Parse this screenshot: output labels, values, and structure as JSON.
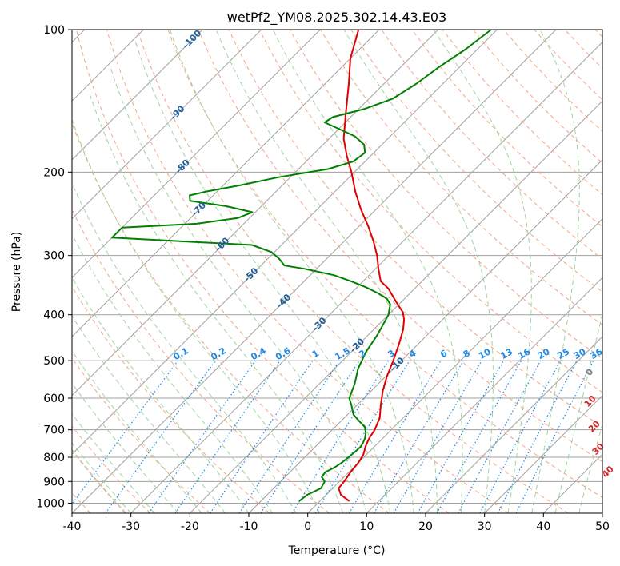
{
  "chart_data": {
    "type": "line",
    "subtype": "skew-T log-P diagram",
    "title": "wetPf2_YM08.2025.302.14.43.E03",
    "xlabel": "Temperature (°C)",
    "ylabel": "Pressure (hPa)",
    "xlim": [
      -40,
      50
    ],
    "ylim": [
      1050,
      100
    ],
    "y_scale": "log",
    "grid": true,
    "x_ticks": [
      "-40",
      "-30",
      "-20",
      "-10",
      "0",
      "10",
      "20",
      "30",
      "40",
      "50"
    ],
    "y_ticks": [
      "100",
      "200",
      "300",
      "400",
      "500",
      "600",
      "700",
      "800",
      "900",
      "1000"
    ],
    "series": [
      {
        "role": "temperature",
        "color": "#e00000",
        "points": [
          {
            "p": 990,
            "t": 5.0
          },
          {
            "p": 960,
            "t": 2.5
          },
          {
            "p": 930,
            "t": 1.0
          },
          {
            "p": 900,
            "t": 0.8
          },
          {
            "p": 860,
            "t": 0.3
          },
          {
            "p": 820,
            "t": 0.0
          },
          {
            "p": 790,
            "t": -0.5
          },
          {
            "p": 760,
            "t": -1.5
          },
          {
            "p": 730,
            "t": -2.3
          },
          {
            "p": 700,
            "t": -2.8
          },
          {
            "p": 660,
            "t": -4.0
          },
          {
            "p": 620,
            "t": -6.0
          },
          {
            "p": 580,
            "t": -8.0
          },
          {
            "p": 540,
            "t": -9.8
          },
          {
            "p": 500,
            "t": -11.4
          },
          {
            "p": 460,
            "t": -13.3
          },
          {
            "p": 430,
            "t": -15.0
          },
          {
            "p": 410,
            "t": -16.5
          },
          {
            "p": 395,
            "t": -18.0
          },
          {
            "p": 385,
            "t": -19.5
          },
          {
            "p": 375,
            "t": -21.0
          },
          {
            "p": 365,
            "t": -22.5
          },
          {
            "p": 352,
            "t": -24.5
          },
          {
            "p": 340,
            "t": -27.0
          },
          {
            "p": 320,
            "t": -29.5
          },
          {
            "p": 300,
            "t": -32.0
          },
          {
            "p": 280,
            "t": -35.0
          },
          {
            "p": 260,
            "t": -38.5
          },
          {
            "p": 240,
            "t": -42.5
          },
          {
            "p": 220,
            "t": -46.5
          },
          {
            "p": 200,
            "t": -50.5
          },
          {
            "p": 185,
            "t": -54.0
          },
          {
            "p": 170,
            "t": -57.5
          },
          {
            "p": 150,
            "t": -61.5
          },
          {
            "p": 130,
            "t": -66.0
          },
          {
            "p": 115,
            "t": -70.0
          },
          {
            "p": 100,
            "t": -73.5
          }
        ]
      },
      {
        "role": "dewpoint",
        "color": "#008000",
        "points": [
          {
            "p": 990,
            "t": -3.5
          },
          {
            "p": 960,
            "t": -3.2
          },
          {
            "p": 930,
            "t": -2.0
          },
          {
            "p": 900,
            "t": -2.5
          },
          {
            "p": 880,
            "t": -3.8
          },
          {
            "p": 860,
            "t": -4.0
          },
          {
            "p": 840,
            "t": -3.2
          },
          {
            "p": 820,
            "t": -2.8
          },
          {
            "p": 800,
            "t": -2.6
          },
          {
            "p": 780,
            "t": -2.4
          },
          {
            "p": 760,
            "t": -2.3
          },
          {
            "p": 745,
            "t": -2.6
          },
          {
            "p": 730,
            "t": -3.0
          },
          {
            "p": 710,
            "t": -3.8
          },
          {
            "p": 690,
            "t": -5.0
          },
          {
            "p": 670,
            "t": -7.0
          },
          {
            "p": 650,
            "t": -9.0
          },
          {
            "p": 620,
            "t": -11.0
          },
          {
            "p": 600,
            "t": -12.5
          },
          {
            "p": 560,
            "t": -14.0
          },
          {
            "p": 520,
            "t": -16.0
          },
          {
            "p": 480,
            "t": -17.5
          },
          {
            "p": 440,
            "t": -18.5
          },
          {
            "p": 400,
            "t": -20.0
          },
          {
            "p": 380,
            "t": -21.5
          },
          {
            "p": 370,
            "t": -23.0
          },
          {
            "p": 360,
            "t": -25.5
          },
          {
            "p": 350,
            "t": -28.5
          },
          {
            "p": 340,
            "t": -32.0
          },
          {
            "p": 330,
            "t": -36.0
          },
          {
            "p": 320,
            "t": -42.0
          },
          {
            "p": 315,
            "t": -46.0
          },
          {
            "p": 305,
            "t": -48.0
          },
          {
            "p": 295,
            "t": -50.5
          },
          {
            "p": 285,
            "t": -55.0
          },
          {
            "p": 275,
            "t": -80.0
          },
          {
            "p": 262,
            "t": -80.0
          },
          {
            "p": 257,
            "t": -68.0
          },
          {
            "p": 250,
            "t": -62.0
          },
          {
            "p": 243,
            "t": -60.5
          },
          {
            "p": 236,
            "t": -66.0
          },
          {
            "p": 230,
            "t": -73.0
          },
          {
            "p": 224,
            "t": -74.0
          },
          {
            "p": 220,
            "t": -72.0
          },
          {
            "p": 213,
            "t": -67.0
          },
          {
            "p": 205,
            "t": -62.0
          },
          {
            "p": 197,
            "t": -55.0
          },
          {
            "p": 190,
            "t": -52.0
          },
          {
            "p": 182,
            "t": -51.5
          },
          {
            "p": 175,
            "t": -53.0
          },
          {
            "p": 168,
            "t": -56.0
          },
          {
            "p": 162,
            "t": -60.0
          },
          {
            "p": 157,
            "t": -63.5
          },
          {
            "p": 153,
            "t": -63.0
          },
          {
            "p": 147,
            "t": -59.0
          },
          {
            "p": 140,
            "t": -56.0
          },
          {
            "p": 130,
            "t": -54.5
          },
          {
            "p": 120,
            "t": -53.5
          },
          {
            "p": 110,
            "t": -52.0
          },
          {
            "p": 100,
            "t": -51.0
          }
        ]
      }
    ],
    "dry_adiabat_labels": [
      "-100",
      "-90",
      "-80",
      "-70",
      "-60",
      "-50",
      "-40",
      "-30",
      "-20",
      "-10"
    ],
    "moist_adiabat_labels": [
      "0",
      "10",
      "20",
      "30",
      "40"
    ],
    "mixing_ratio_labels": [
      "0.1",
      "0.2",
      "0.4",
      "0.6",
      "1",
      "1.5",
      "2",
      "3",
      "4",
      "6",
      "8",
      "10",
      "13",
      "16",
      "20",
      "25",
      "30",
      "36"
    ],
    "colors": {
      "temperature": "#e00000",
      "dewpoint": "#008000",
      "isotherms": "#a0a0a0",
      "isobars": "#a0a0a0",
      "dry_adiabats": "#f4a582",
      "moist_adiabats": "#9fd49f",
      "mixing_ratio": "#1e88e5",
      "dry_adiabat_label": "#1f5f99",
      "moist_adiabat_label_zero": "#808080",
      "moist_adiabat_label": "#d62728",
      "mixing_ratio_label": "#1e88e5",
      "tan_curve": "#d8c3a5"
    }
  }
}
